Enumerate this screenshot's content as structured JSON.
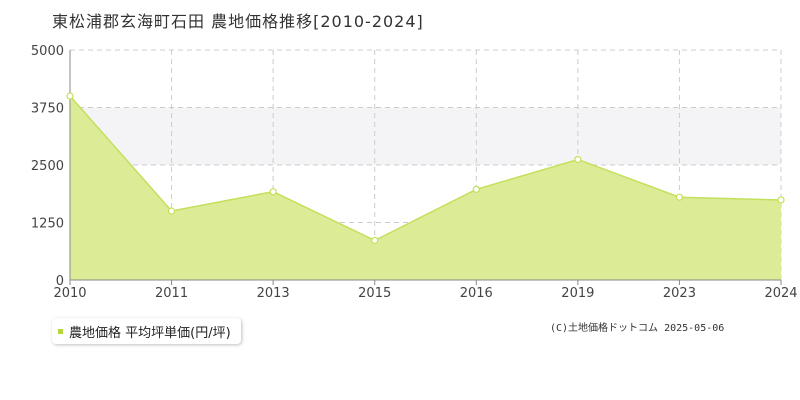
{
  "title": "東松浦郡玄海町石田 農地価格推移[2010-2024]",
  "legend_label": "農地価格 平均坪単価(円/坪)",
  "copyright": "(C)土地価格ドットコム 2025-05-06",
  "colors": {
    "area_fill": "#dcec96",
    "line": "#c3e05c",
    "marker_fill": "#ffffff",
    "grid": "#cccccc",
    "band": "#f4f4f6",
    "axis": "#888888"
  },
  "chart_data": {
    "type": "area",
    "title": "東松浦郡玄海町石田 農地価格推移[2010-2024]",
    "xlabel": "",
    "ylabel": "",
    "categories": [
      "2010",
      "2011",
      "2013",
      "2015",
      "2016",
      "2019",
      "2023",
      "2024"
    ],
    "series": [
      {
        "name": "農地価格 平均坪単価(円/坪)",
        "values": [
          4000,
          1500,
          1920,
          860,
          1970,
          2620,
          1800,
          1740
        ]
      }
    ],
    "yticks": [
      0,
      1250,
      2500,
      3750,
      5000
    ],
    "ylim": [
      0,
      5000
    ],
    "grid": true,
    "legend_position": "bottom-left"
  }
}
